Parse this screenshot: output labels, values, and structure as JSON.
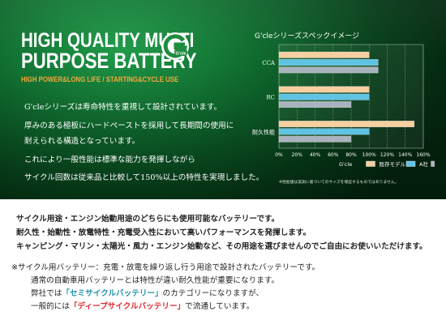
{
  "header": {
    "headline_line1": "HIGH QUALITY MULTI",
    "headline_line2": "PURPOSE BATTERY",
    "tagline": "HIGH POWER&LONG LIFE / STARTING&CYCLE USE",
    "logo_text": "G'cle"
  },
  "description": [
    "G'cleシリーズは寿命特性を重視して設計されています。",
    "厚みのある極板にハードペーストを採用して長期間の使用に",
    "耐えられる構造となっています。",
    "これにより一般性能は標準な能力を発揮しながら",
    "サイクル回数は従来品と比較して150%以上の特性を実現しました。"
  ],
  "chart_data": {
    "type": "bar",
    "orientation": "horizontal",
    "title": "G'cleシリーズスペックイメージ",
    "categories": [
      "CCA",
      "RC",
      "耐久性能"
    ],
    "series": [
      {
        "name": "G'cle",
        "color": "#f7cfa0",
        "values": [
          100,
          100,
          150
        ]
      },
      {
        "name": "既存モデル",
        "color": "#5fc3e4",
        "values": [
          110,
          100,
          100
        ]
      },
      {
        "name": "A社",
        "color": "#a9b3bd",
        "values": [
          110,
          80,
          80
        ]
      }
    ],
    "xlim": [
      0,
      160
    ],
    "xticks": [
      "0%",
      "20%",
      "40%",
      "60%",
      "80%",
      "100%",
      "120%",
      "140%",
      "160%"
    ],
    "grid": true,
    "legend": "bottom-right",
    "note": "※性能値は実測に基づいてのサイズを保証するものではありません。"
  },
  "body": {
    "bold_lines": [
      "サイクル用途・エンジン始動用途のどちらにも使用可能なバッテリーです。",
      "耐久性・始動性・放電特性・充電受入性において高いパフォーマンスを発揮します。",
      "キャンピング・マリン・太陽光・風力・エンジン始動など、その用途を選びませんのでご自由にお使いいただけます。"
    ],
    "note_line1": "※サイクル用バッテリー：充電・放電を繰り返し行う用途で設計されたバッテリーです。",
    "note_line2": "通常の自動車用バッテリーとは特性が違い耐久性能が重要になります。",
    "note_line3_pre": "弊社では",
    "note_line3_highlight": "「セミサイクルバッテリー」",
    "note_line3_post": "のカテゴリーになりますが、",
    "note_line4_pre": "一般的には",
    "note_line4_highlight": "「ディープサイクルバッテリー」",
    "note_line4_post": "で流通しています。"
  }
}
